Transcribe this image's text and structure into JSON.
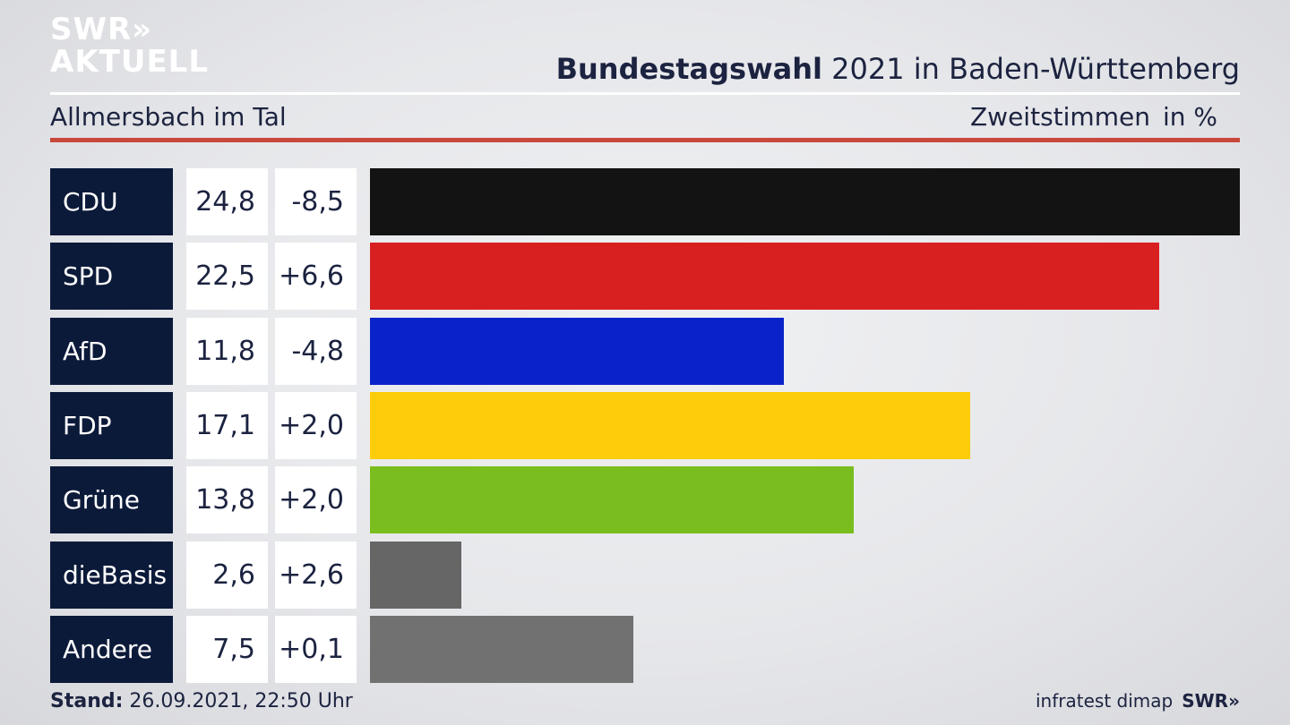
{
  "brand": {
    "line1": "SWR»",
    "line2": "AKTUELL"
  },
  "header": {
    "title_bold": "Bundestagswahl",
    "title_rest": " 2021 in Baden-Württemberg",
    "location": "Allmersbach im Tal",
    "measure": "Zweitstimmen",
    "unit": "in %"
  },
  "chart_data": {
    "type": "bar",
    "orientation": "horizontal",
    "title": "Bundestagswahl 2021 in Baden-Württemberg",
    "subtitle": "Allmersbach im Tal",
    "measure": "Zweitstimmen",
    "unit": "in %",
    "categories": [
      "CDU",
      "SPD",
      "AfD",
      "FDP",
      "Grüne",
      "dieBasis",
      "Andere"
    ],
    "values": [
      24.8,
      22.5,
      11.8,
      17.1,
      13.8,
      2.6,
      7.5
    ],
    "value_labels": [
      "24,8",
      "22,5",
      "11,8",
      "17,1",
      "13,8",
      "2,6",
      "7,5"
    ],
    "change_labels": [
      "-8,5",
      "+6,6",
      "-4,8",
      "+2,0",
      "+2,0",
      "+2,6",
      "+0,1"
    ],
    "colors": [
      "#131313",
      "#d92020",
      "#0a22c9",
      "#fdcc0a",
      "#79be1e",
      "#666666",
      "#717171"
    ],
    "xlim": [
      0,
      24.8
    ]
  },
  "footer": {
    "stand_label": "Stand:",
    "stand_value": " 26.09.2021, 22:50 Uhr",
    "source": "infratest dimap",
    "brand": "SWR»"
  }
}
